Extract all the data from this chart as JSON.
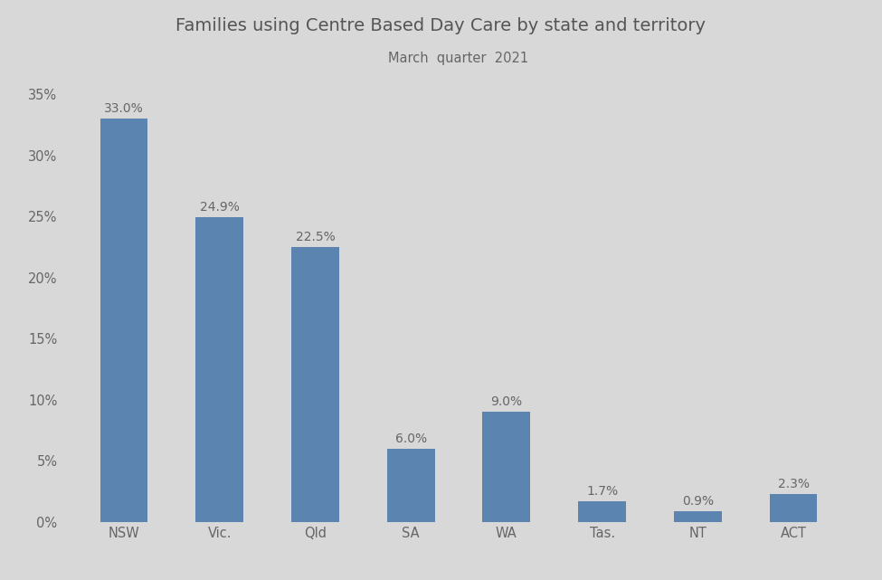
{
  "title": "Families using Centre Based Day Care by state and territory",
  "subtitle": "March  quarter  2021",
  "categories": [
    "NSW",
    "Vic.",
    "Qld",
    "SA",
    "WA",
    "Tas.",
    "NT",
    "ACT"
  ],
  "values": [
    33.0,
    24.9,
    22.5,
    6.0,
    9.0,
    1.7,
    0.9,
    2.3
  ],
  "bar_color": "#5b84b1",
  "background_color": "#d8d8d8",
  "ylim": [
    0,
    37
  ],
  "yticks": [
    0,
    5,
    10,
    15,
    20,
    25,
    30,
    35
  ],
  "title_fontsize": 14,
  "subtitle_fontsize": 10.5,
  "tick_fontsize": 10.5,
  "bar_label_fontsize": 10,
  "bar_width": 0.5
}
